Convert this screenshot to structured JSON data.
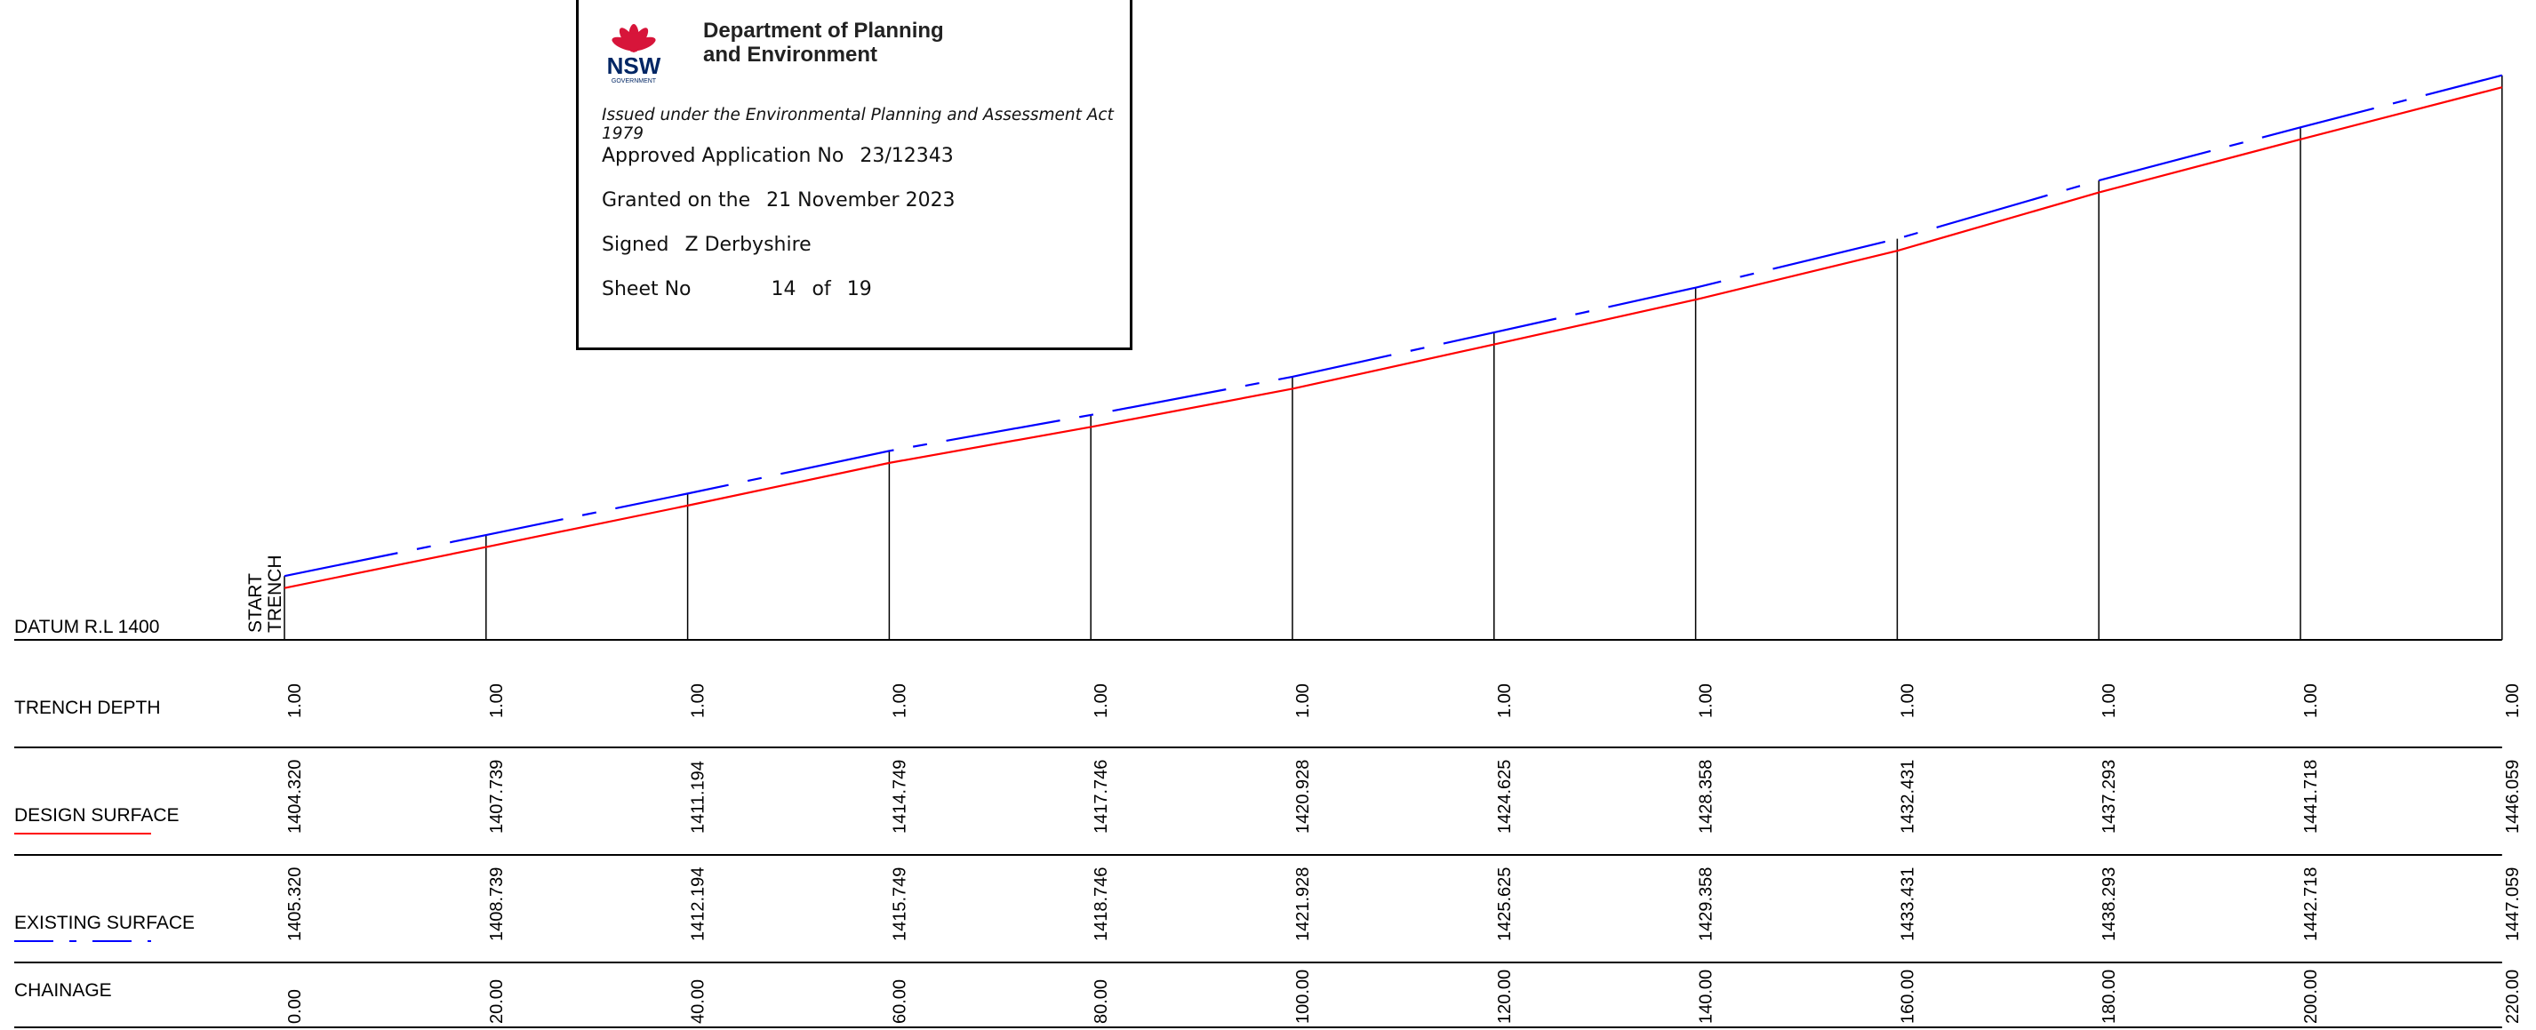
{
  "datum_label": "DATUM R.L  1400",
  "start_trench_label": [
    "START",
    "TRENCH"
  ],
  "row_labels": {
    "trench_depth": "TRENCH DEPTH",
    "design_surface": "DESIGN SURFACE",
    "existing_surface": "EXISTING SURFACE",
    "chainage": "CHAINAGE"
  },
  "stamp": {
    "logo_text": "NSW",
    "logo_subtext": "GOVERNMENT",
    "dept_line1": "Department of Planning",
    "dept_line2": "and Environment",
    "issued": "Issued under the Environmental Planning and Assessment Act 1979",
    "application_label": "Approved Application No",
    "application_value": "23/12343",
    "granted_label": "Granted on the",
    "granted_value": "21 November 2023",
    "signed_label": "Signed",
    "signed_value": "Z Derbyshire",
    "sheet_label": "Sheet No",
    "sheet_value": "14",
    "sheet_of": "of",
    "sheet_total": "19"
  },
  "colors": {
    "design_surface": "#ff0000",
    "existing_surface": "#0000ff",
    "lines": "#000000"
  },
  "chart_data": {
    "type": "line",
    "x_name": "chainage",
    "chainage": [
      0,
      20,
      40,
      60,
      80,
      100,
      120,
      140,
      160,
      180,
      200,
      220
    ],
    "chainage_labels": [
      "0.00",
      "20.00",
      "40.00",
      "60.00",
      "80.00",
      "100.00",
      "120.00",
      "140.00",
      "160.00",
      "180.00",
      "200.00",
      "220.00"
    ],
    "series": [
      {
        "name": "DESIGN SURFACE",
        "values": [
          1404.32,
          1407.739,
          1411.194,
          1414.749,
          1417.746,
          1420.928,
          1424.625,
          1428.358,
          1432.431,
          1437.293,
          1441.718,
          1446.059
        ],
        "labels": [
          "1404.320",
          "1407.739",
          "1411.194",
          "1414.749",
          "1417.746",
          "1420.928",
          "1424.625",
          "1428.358",
          "1432.431",
          "1437.293",
          "1441.718",
          "1446.059"
        ],
        "color": "#ff0000",
        "style": "solid"
      },
      {
        "name": "EXISTING SURFACE",
        "values": [
          1405.32,
          1408.739,
          1412.194,
          1415.749,
          1418.746,
          1421.928,
          1425.625,
          1429.358,
          1433.431,
          1438.293,
          1442.718,
          1447.059
        ],
        "labels": [
          "1405.320",
          "1408.739",
          "1412.194",
          "1415.749",
          "1418.746",
          "1421.928",
          "1425.625",
          "1429.358",
          "1433.431",
          "1438.293",
          "1442.718",
          "1447.059"
        ],
        "color": "#0000ff",
        "style": "dash-dot"
      }
    ],
    "trench_depth": [
      "1.00",
      "1.00",
      "1.00",
      "1.00",
      "1.00",
      "1.00",
      "1.00",
      "1.00",
      "1.00",
      "1.00",
      "1.00",
      "1.00"
    ],
    "datum": 1400,
    "grid": false
  }
}
